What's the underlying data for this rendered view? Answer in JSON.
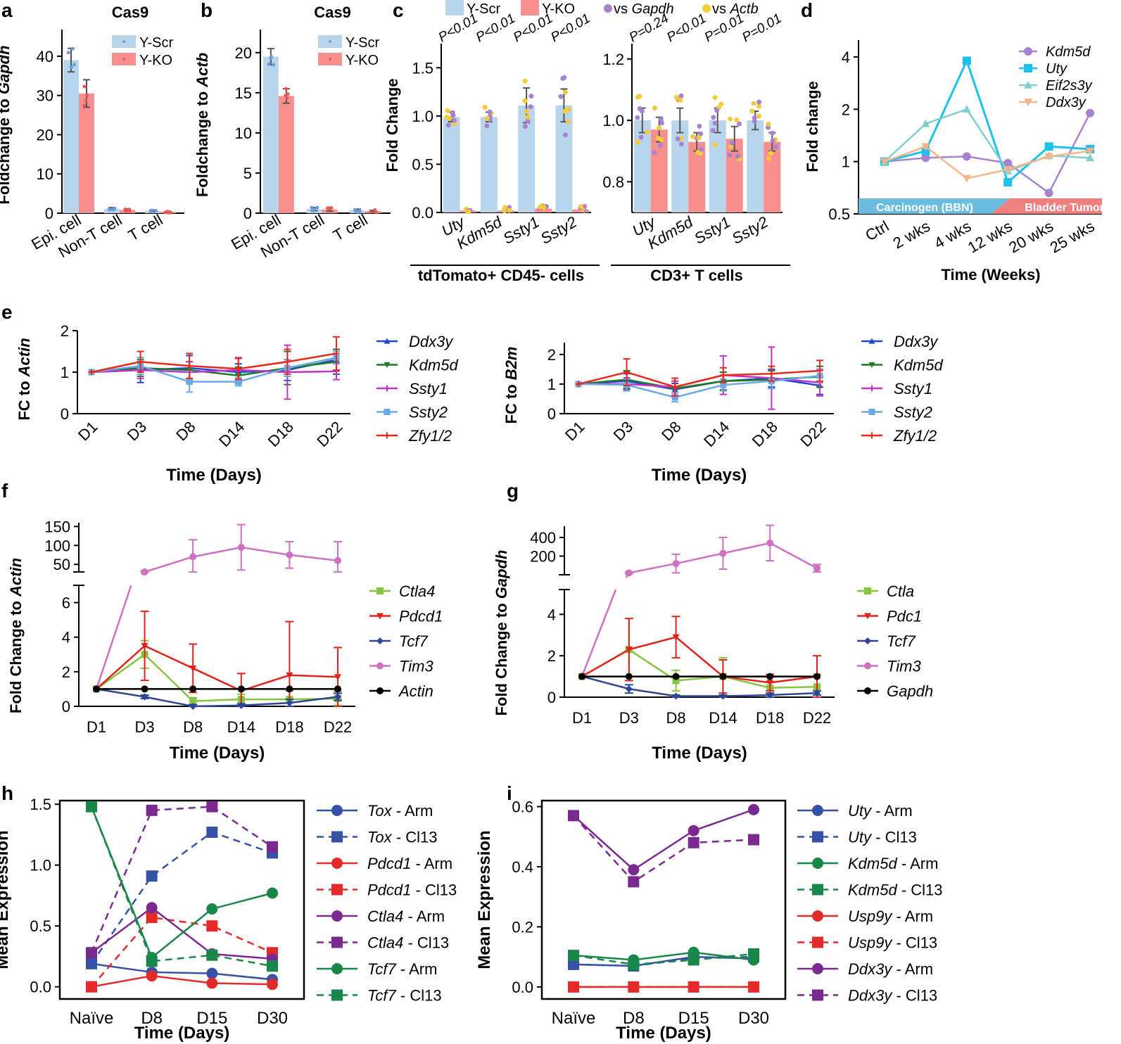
{
  "colors": {
    "blue": "#b9d5ec",
    "red": "#f78f8f",
    "purple": "#a782cf",
    "gold": "#f2cc3a",
    "cyan": "#1ec0ee",
    "teal": "#7fcfcf",
    "orange": "#f7b488",
    "lineBlue": "#2048d8",
    "lineGreen": "#1a7a26",
    "lineMagenta": "#c333c9",
    "lineLight": "#6aa8e6",
    "lineRed": "#e8291c",
    "fgreen": "#87c540",
    "fred": "#e2231a",
    "fnavy": "#2d4594",
    "fpink": "#d070c0",
    "black": "#000000",
    "hblue": "#3651a6",
    "hred": "#e52a2a",
    "hpurple": "#7a2a8f",
    "hgreen": "#17874a",
    "bbnBlue": "#6bbde0",
    "tumorRed": "#f08080"
  },
  "chart_data": [
    {
      "id": "a",
      "panel_label": "a",
      "type": "bar",
      "title": "Cas9",
      "ylabel_pre": "Foldchange to ",
      "ylabel_gene": "Gapdh",
      "ylim": [
        0,
        45
      ],
      "yticks": [
        "0",
        "10",
        "20",
        "30",
        "40"
      ],
      "categories": [
        "Epi. cell",
        "Non-T cell",
        "T cell"
      ],
      "legend": [
        "Y-Scr",
        "Y-KO"
      ],
      "series": [
        {
          "name": "Y-Scr",
          "values": [
            39,
            1.1,
            0.6
          ],
          "errors": [
            3,
            0.3,
            0.2
          ]
        },
        {
          "name": "Y-KO",
          "values": [
            30.5,
            0.8,
            0.35
          ],
          "errors": [
            3.5,
            0.3,
            0.1
          ]
        }
      ]
    },
    {
      "id": "b",
      "panel_label": "b",
      "type": "bar",
      "title": "Cas9",
      "ylabel_pre": "Foldchange to ",
      "ylabel_gene": "Actb",
      "ylim": [
        0,
        22
      ],
      "yticks": [
        "0",
        "5",
        "10",
        "15",
        "20"
      ],
      "categories": [
        "Epi. cell",
        "Non-T cell",
        "T cell"
      ],
      "legend": [
        "Y-Scr",
        "Y-KO"
      ],
      "series": [
        {
          "name": "Y-Scr",
          "values": [
            19.5,
            0.5,
            0.35
          ],
          "errors": [
            1,
            0.2,
            0.15
          ]
        },
        {
          "name": "Y-KO",
          "values": [
            14.6,
            0.45,
            0.25
          ],
          "errors": [
            0.9,
            0.2,
            0.1
          ]
        }
      ]
    },
    {
      "id": "c",
      "panel_label": "c",
      "type": "bar",
      "ylabel": "Fold Change",
      "legend": [
        "Y-Scr",
        "Y-KO",
        "vs Gapdh",
        "vs Actb"
      ],
      "legend_prefix": "vs ",
      "legend_genes": [
        "Gapdh",
        "Actb"
      ],
      "groups": [
        {
          "name": "tdTomato+ CD45- cells",
          "ylim": [
            0,
            1.75
          ],
          "yticks": [
            "0.0",
            "0.5",
            "1.0",
            "1.5"
          ],
          "categories": [
            "Uty",
            "Kdm5d",
            "Ssty1",
            "Ssty2"
          ],
          "pvalues": [
            "P<0.01",
            "P<0.01",
            "P<0.01",
            "P<0.01"
          ],
          "y_scr": [
            0.99,
            0.99,
            1.11,
            1.11
          ],
          "y_scr_err": [
            0.05,
            0.05,
            0.18,
            0.17
          ],
          "y_ko": [
            0.02,
            0.02,
            0.04,
            0.03
          ]
        },
        {
          "name": "CD3+ T cells",
          "ylim": [
            0.7,
            1.25
          ],
          "yticks": [
            "0.8",
            "1.0",
            "1.2"
          ],
          "categories": [
            "Uty",
            "Kdm5d",
            "Ssty1",
            "Ssty2"
          ],
          "pvalues": [
            "P=0.24",
            "P<0.01",
            "P=0.01",
            "P=0.01"
          ],
          "y_scr": [
            1.0,
            1.0,
            1.0,
            1.0
          ],
          "y_scr_err": [
            0.04,
            0.04,
            0.04,
            0.03
          ],
          "y_ko": [
            0.97,
            0.93,
            0.94,
            0.93
          ],
          "y_ko_err": [
            0.04,
            0.03,
            0.04,
            0.03
          ]
        }
      ]
    },
    {
      "id": "d",
      "panel_label": "d",
      "type": "line",
      "ylabel": "Fold change",
      "xlabel": "Time (Weeks)",
      "yscale": "log2",
      "ylim": [
        0.5,
        5
      ],
      "yticks": [
        "0.5",
        "1",
        "2",
        "4"
      ],
      "categories": [
        "Ctrl",
        "2 wks",
        "4 wks",
        "12 wks",
        "20 wks",
        "25 wks"
      ],
      "bands": [
        "Carcinogen (BBN)",
        "Bladder Tumors"
      ],
      "series": [
        {
          "name": "Kdm5d",
          "values": [
            1.0,
            1.05,
            1.07,
            0.98,
            0.66,
            1.9
          ]
        },
        {
          "name": "Uty",
          "values": [
            1.0,
            1.15,
            3.8,
            0.76,
            1.22,
            1.18
          ]
        },
        {
          "name": "Eif2s3y",
          "values": [
            1.0,
            1.65,
            2.0,
            0.88,
            1.08,
            1.05
          ]
        },
        {
          "name": "Ddx3y",
          "values": [
            1.0,
            1.22,
            0.8,
            0.9,
            1.07,
            1.15
          ]
        }
      ]
    },
    {
      "id": "e1",
      "panel_label": "e",
      "type": "line",
      "ylabel_pre": "FC to ",
      "ylabel_gene": "Actin",
      "xlabel": "Time (Days)",
      "ylim": [
        0,
        2
      ],
      "yticks": [
        "0",
        "1",
        "2"
      ],
      "categories": [
        "D1",
        "D3",
        "D8",
        "D14",
        "D18",
        "D22"
      ],
      "series": [
        {
          "name": "Ddx3y",
          "values": [
            1,
            1.05,
            1.1,
            1.0,
            1.05,
            1.3
          ],
          "errors": [
            0,
            0.3,
            0.3,
            0.2,
            0.25,
            0.25
          ]
        },
        {
          "name": "Kdm5d",
          "values": [
            1,
            1.1,
            1.05,
            0.92,
            1.1,
            1.25
          ],
          "errors": [
            0,
            0.2,
            0.2,
            0.2,
            0.4,
            0.3
          ]
        },
        {
          "name": "Ssty1",
          "values": [
            1,
            1.05,
            1.0,
            1.05,
            1.0,
            1.02
          ],
          "errors": [
            0,
            0.2,
            0.25,
            0.3,
            0.65,
            0.2
          ]
        },
        {
          "name": "Ssty2",
          "values": [
            1,
            1.15,
            0.77,
            0.77,
            1.1,
            1.35
          ],
          "errors": [
            0,
            0.2,
            0.25,
            0.1,
            0.2,
            0.15
          ]
        },
        {
          "name": "Zfy1/2",
          "values": [
            1,
            1.25,
            1.15,
            1.08,
            1.25,
            1.45
          ],
          "errors": [
            0,
            0.25,
            0.3,
            0.25,
            0.3,
            0.4
          ]
        }
      ]
    },
    {
      "id": "e2",
      "type": "line",
      "ylabel_pre": "FC to ",
      "ylabel_gene": "B2m",
      "xlabel": "Time (Days)",
      "ylim": [
        0,
        2.4
      ],
      "yticks": [
        "0",
        "1",
        "2"
      ],
      "categories": [
        "D1",
        "D3",
        "D8",
        "D14",
        "D18",
        "D22"
      ],
      "series": [
        {
          "name": "Ddx3y",
          "values": [
            1,
            1.1,
            0.82,
            1.1,
            1.2,
            0.95
          ],
          "errors": [
            0,
            0.25,
            0.2,
            0.3,
            0.3,
            0.3
          ]
        },
        {
          "name": "Kdm5d",
          "values": [
            1,
            1.15,
            0.85,
            1.1,
            1.15,
            1.25
          ],
          "errors": [
            0,
            0.3,
            0.25,
            0.3,
            0.3,
            0.35
          ]
        },
        {
          "name": "Ssty1",
          "values": [
            1,
            1.0,
            0.9,
            1.3,
            1.2,
            1.05
          ],
          "errors": [
            0,
            0.2,
            0.2,
            0.65,
            1.05,
            0.45
          ]
        },
        {
          "name": "Ssty2",
          "values": [
            1,
            0.97,
            0.55,
            0.97,
            1.1,
            1.28
          ],
          "errors": [
            0,
            0.2,
            0.15,
            0.2,
            0.25,
            0.2
          ]
        },
        {
          "name": "Zfy1/2",
          "values": [
            1,
            1.4,
            0.9,
            1.3,
            1.35,
            1.45
          ],
          "errors": [
            0,
            0.45,
            0.3,
            0.25,
            0.25,
            0.35
          ]
        }
      ]
    },
    {
      "id": "f",
      "panel_label": "f",
      "type": "line",
      "ylabel_pre": "Fold Change to ",
      "ylabel_gene": "Actin",
      "xlabel": "Time (Days)",
      "broken_axis": true,
      "ylim_low": [
        0,
        7
      ],
      "ylim_high": [
        30,
        160
      ],
      "yticks_low": [
        "0",
        "2",
        "4",
        "6"
      ],
      "yticks_high": [
        "50",
        "100",
        "150"
      ],
      "categories": [
        "D1",
        "D3",
        "D8",
        "D14",
        "D18",
        "D22"
      ],
      "series": [
        {
          "name": "Ctla4",
          "values": [
            1,
            3.0,
            0.3,
            0.4,
            0.4,
            0.45
          ],
          "errors": [
            0,
            0.8,
            0.2,
            0.3,
            0.5,
            0.4
          ]
        },
        {
          "name": "Pdcd1",
          "values": [
            1,
            3.5,
            2.2,
            0.9,
            1.8,
            1.7
          ],
          "errors": [
            0,
            2.0,
            1.4,
            1.0,
            3.1,
            1.7
          ]
        },
        {
          "name": "Tcf7",
          "values": [
            1,
            0.55,
            0.0,
            0.05,
            0.2,
            0.55
          ],
          "errors": [
            0,
            0.1,
            0.1,
            0.1,
            0.2,
            0.2
          ]
        },
        {
          "name": "Tim3",
          "values": [
            1,
            30,
            70,
            95,
            75,
            60
          ],
          "errors": [
            0,
            3,
            45,
            60,
            35,
            50
          ]
        },
        {
          "name": "Actin",
          "values": [
            1,
            1,
            1,
            1,
            1,
            1
          ]
        }
      ]
    },
    {
      "id": "g",
      "panel_label": "g",
      "type": "line",
      "ylabel_pre": "Fold Change to ",
      "ylabel_gene": "Gapdh",
      "xlabel": "Time (Days)",
      "broken_axis": true,
      "ylim_low": [
        0,
        5.2
      ],
      "ylim_high": [
        0,
        520
      ],
      "yticks_low": [
        "0",
        "2",
        "4"
      ],
      "yticks_high": [
        "200",
        "400"
      ],
      "categories": [
        "D1",
        "D3",
        "D8",
        "D14",
        "D18",
        "D22"
      ],
      "series": [
        {
          "name": "Ctla",
          "values": [
            1,
            2.3,
            0.8,
            1.0,
            0.45,
            0.5
          ],
          "errors": [
            0,
            1.5,
            0.5,
            0.9,
            0.3,
            0.6
          ]
        },
        {
          "name": "Pdc1",
          "values": [
            1,
            2.3,
            2.9,
            1.0,
            0.7,
            1.0
          ],
          "errors": [
            0,
            1.5,
            1.0,
            0.8,
            0.4,
            1.0
          ]
        },
        {
          "name": "Tcf7",
          "values": [
            1,
            0.4,
            0.05,
            0.05,
            0.1,
            0.2
          ],
          "errors": [
            0,
            0.2,
            0.05,
            0.05,
            0.1,
            0.1
          ]
        },
        {
          "name": "Tim3",
          "values": [
            1,
            20,
            120,
            230,
            340,
            70
          ],
          "errors": [
            0,
            10,
            100,
            170,
            190,
            40
          ]
        },
        {
          "name": "Gapdh",
          "values": [
            1,
            1,
            1,
            1,
            1,
            1
          ]
        }
      ]
    },
    {
      "id": "h",
      "panel_label": "h",
      "type": "line",
      "ylabel": "Mean Expression",
      "xlabel": "Time (Days)",
      "ylim": [
        -0.1,
        1.53
      ],
      "yticks": [
        "0.0",
        "0.5",
        "1.0",
        "1.5"
      ],
      "categories": [
        "Naïve",
        "D8",
        "D15",
        "D30"
      ],
      "legend_suffix": [
        "- Arm",
        "- Cl13"
      ],
      "series": [
        {
          "name": "Tox",
          "suffix": "Arm",
          "values": [
            0.19,
            0.12,
            0.11,
            0.06
          ]
        },
        {
          "name": "Tox",
          "suffix": "Cl13",
          "values": [
            0.19,
            0.91,
            1.27,
            1.1
          ]
        },
        {
          "name": "Pdcd1",
          "suffix": "Arm",
          "values": [
            0.0,
            0.09,
            0.03,
            0.02
          ]
        },
        {
          "name": "Pdcd1",
          "suffix": "Cl13",
          "values": [
            0.0,
            0.57,
            0.5,
            0.28
          ]
        },
        {
          "name": "Ctla4",
          "suffix": "Arm",
          "values": [
            0.28,
            0.65,
            0.27,
            0.23
          ]
        },
        {
          "name": "Ctla4",
          "suffix": "Cl13",
          "values": [
            0.28,
            1.45,
            1.48,
            1.15
          ]
        },
        {
          "name": "Tcf7",
          "suffix": "Arm",
          "values": [
            1.48,
            0.24,
            0.64,
            0.77
          ]
        },
        {
          "name": "Tcf7",
          "suffix": "Cl13",
          "values": [
            1.48,
            0.21,
            0.26,
            0.17
          ]
        }
      ]
    },
    {
      "id": "i",
      "panel_label": "i",
      "type": "line",
      "ylabel": "Mean Expression",
      "xlabel": "Time (Days)",
      "ylim": [
        -0.04,
        0.62
      ],
      "yticks": [
        "0.0",
        "0.2",
        "0.4",
        "0.6"
      ],
      "categories": [
        "Naïve",
        "D8",
        "D15",
        "D30"
      ],
      "series": [
        {
          "name": "Uty",
          "suffix": "Arm",
          "values": [
            0.075,
            0.07,
            0.1,
            0.095
          ]
        },
        {
          "name": "Uty",
          "suffix": "Cl13",
          "values": [
            0.075,
            0.07,
            0.095,
            0.1
          ]
        },
        {
          "name": "Kdm5d",
          "suffix": "Arm",
          "values": [
            0.105,
            0.09,
            0.115,
            0.09
          ]
        },
        {
          "name": "Kdm5d",
          "suffix": "Cl13",
          "values": [
            0.105,
            0.075,
            0.09,
            0.11
          ]
        },
        {
          "name": "Usp9y",
          "suffix": "Arm",
          "values": [
            0.0,
            0.0,
            0.0,
            0.0
          ]
        },
        {
          "name": "Usp9y",
          "suffix": "Cl13",
          "values": [
            0.0,
            0.0,
            0.0,
            0.0
          ]
        },
        {
          "name": "Ddx3y",
          "suffix": "Arm",
          "values": [
            0.57,
            0.39,
            0.52,
            0.59
          ]
        },
        {
          "name": "Ddx3y",
          "suffix": "Cl13",
          "values": [
            0.57,
            0.35,
            0.48,
            0.49
          ]
        }
      ]
    }
  ]
}
